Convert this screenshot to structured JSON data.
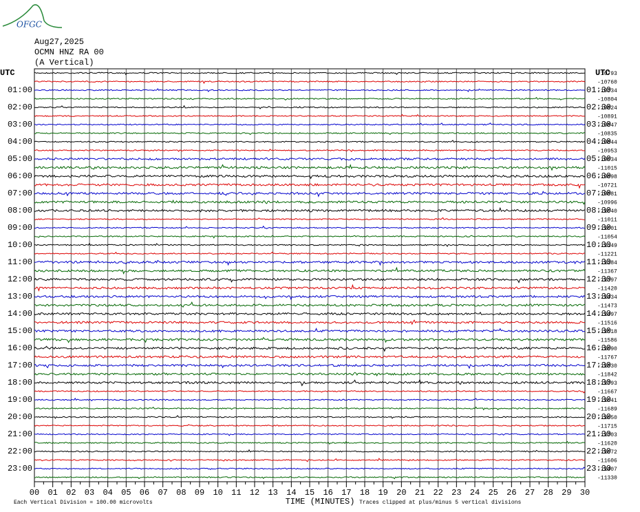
{
  "header": {
    "logo": "OFGC",
    "date": "Aug27,2025",
    "station": "OCMN HNZ RA 00",
    "component": "(A Vertical)",
    "left_label": "UTC",
    "right_label": "UTC"
  },
  "left_hours": [
    "01:00",
    "02:00",
    "03:00",
    "04:00",
    "05:00",
    "06:00",
    "07:00",
    "08:00",
    "09:00",
    "10:00",
    "11:00",
    "12:00",
    "13:00",
    "14:00",
    "15:00",
    "16:00",
    "17:00",
    "18:00",
    "19:00",
    "20:00",
    "21:00",
    "22:00",
    "23:00"
  ],
  "right_hours": [
    "01:30",
    "02:30",
    "03:30",
    "04:30",
    "05:30",
    "06:30",
    "07:30",
    "08:30",
    "09:30",
    "10:30",
    "11:30",
    "12:30",
    "13:30",
    "14:30",
    "15:30",
    "16:30",
    "17:30",
    "18:30",
    "19:30",
    "20:30",
    "21:30",
    "22:30",
    "23:30"
  ],
  "offsets": [
    "-10793",
    "-10760",
    "-10734",
    "-10804",
    "-10824",
    "-10891",
    "-10847",
    "-10835",
    "-10844",
    "-10953",
    "-10934",
    "-11015",
    "-10898",
    "-10721",
    "-10881",
    "-10996",
    "-11040",
    "-11011",
    "-11001",
    "-11054",
    "-11149",
    "-11221",
    "-11284",
    "-11367",
    "-11397",
    "-11420",
    "-11434",
    "-11473",
    "-11497",
    "-11516",
    "-11518",
    "-11586",
    "-11690",
    "-11767",
    "-11830",
    "-11842",
    "-11793",
    "-11667",
    "-11641",
    "-11689",
    "-11650",
    "-11715",
    "-11703",
    "-11620",
    "-11672",
    "-11606",
    "-11407",
    "-11330"
  ],
  "minutes": [
    "00",
    "01",
    "02",
    "03",
    "04",
    "05",
    "06",
    "07",
    "08",
    "09",
    "10",
    "11",
    "12",
    "13",
    "14",
    "15",
    "16",
    "17",
    "18",
    "19",
    "20",
    "21",
    "22",
    "23",
    "24",
    "25",
    "26",
    "27",
    "28",
    "29",
    "30"
  ],
  "footer": {
    "x_label": "TIME (MINUTES)",
    "scale_note": "Each Vertical Division =  100.00 microvolts",
    "clip_note": "Traces clipped at plus/minus 5 vertical divisions"
  }
}
